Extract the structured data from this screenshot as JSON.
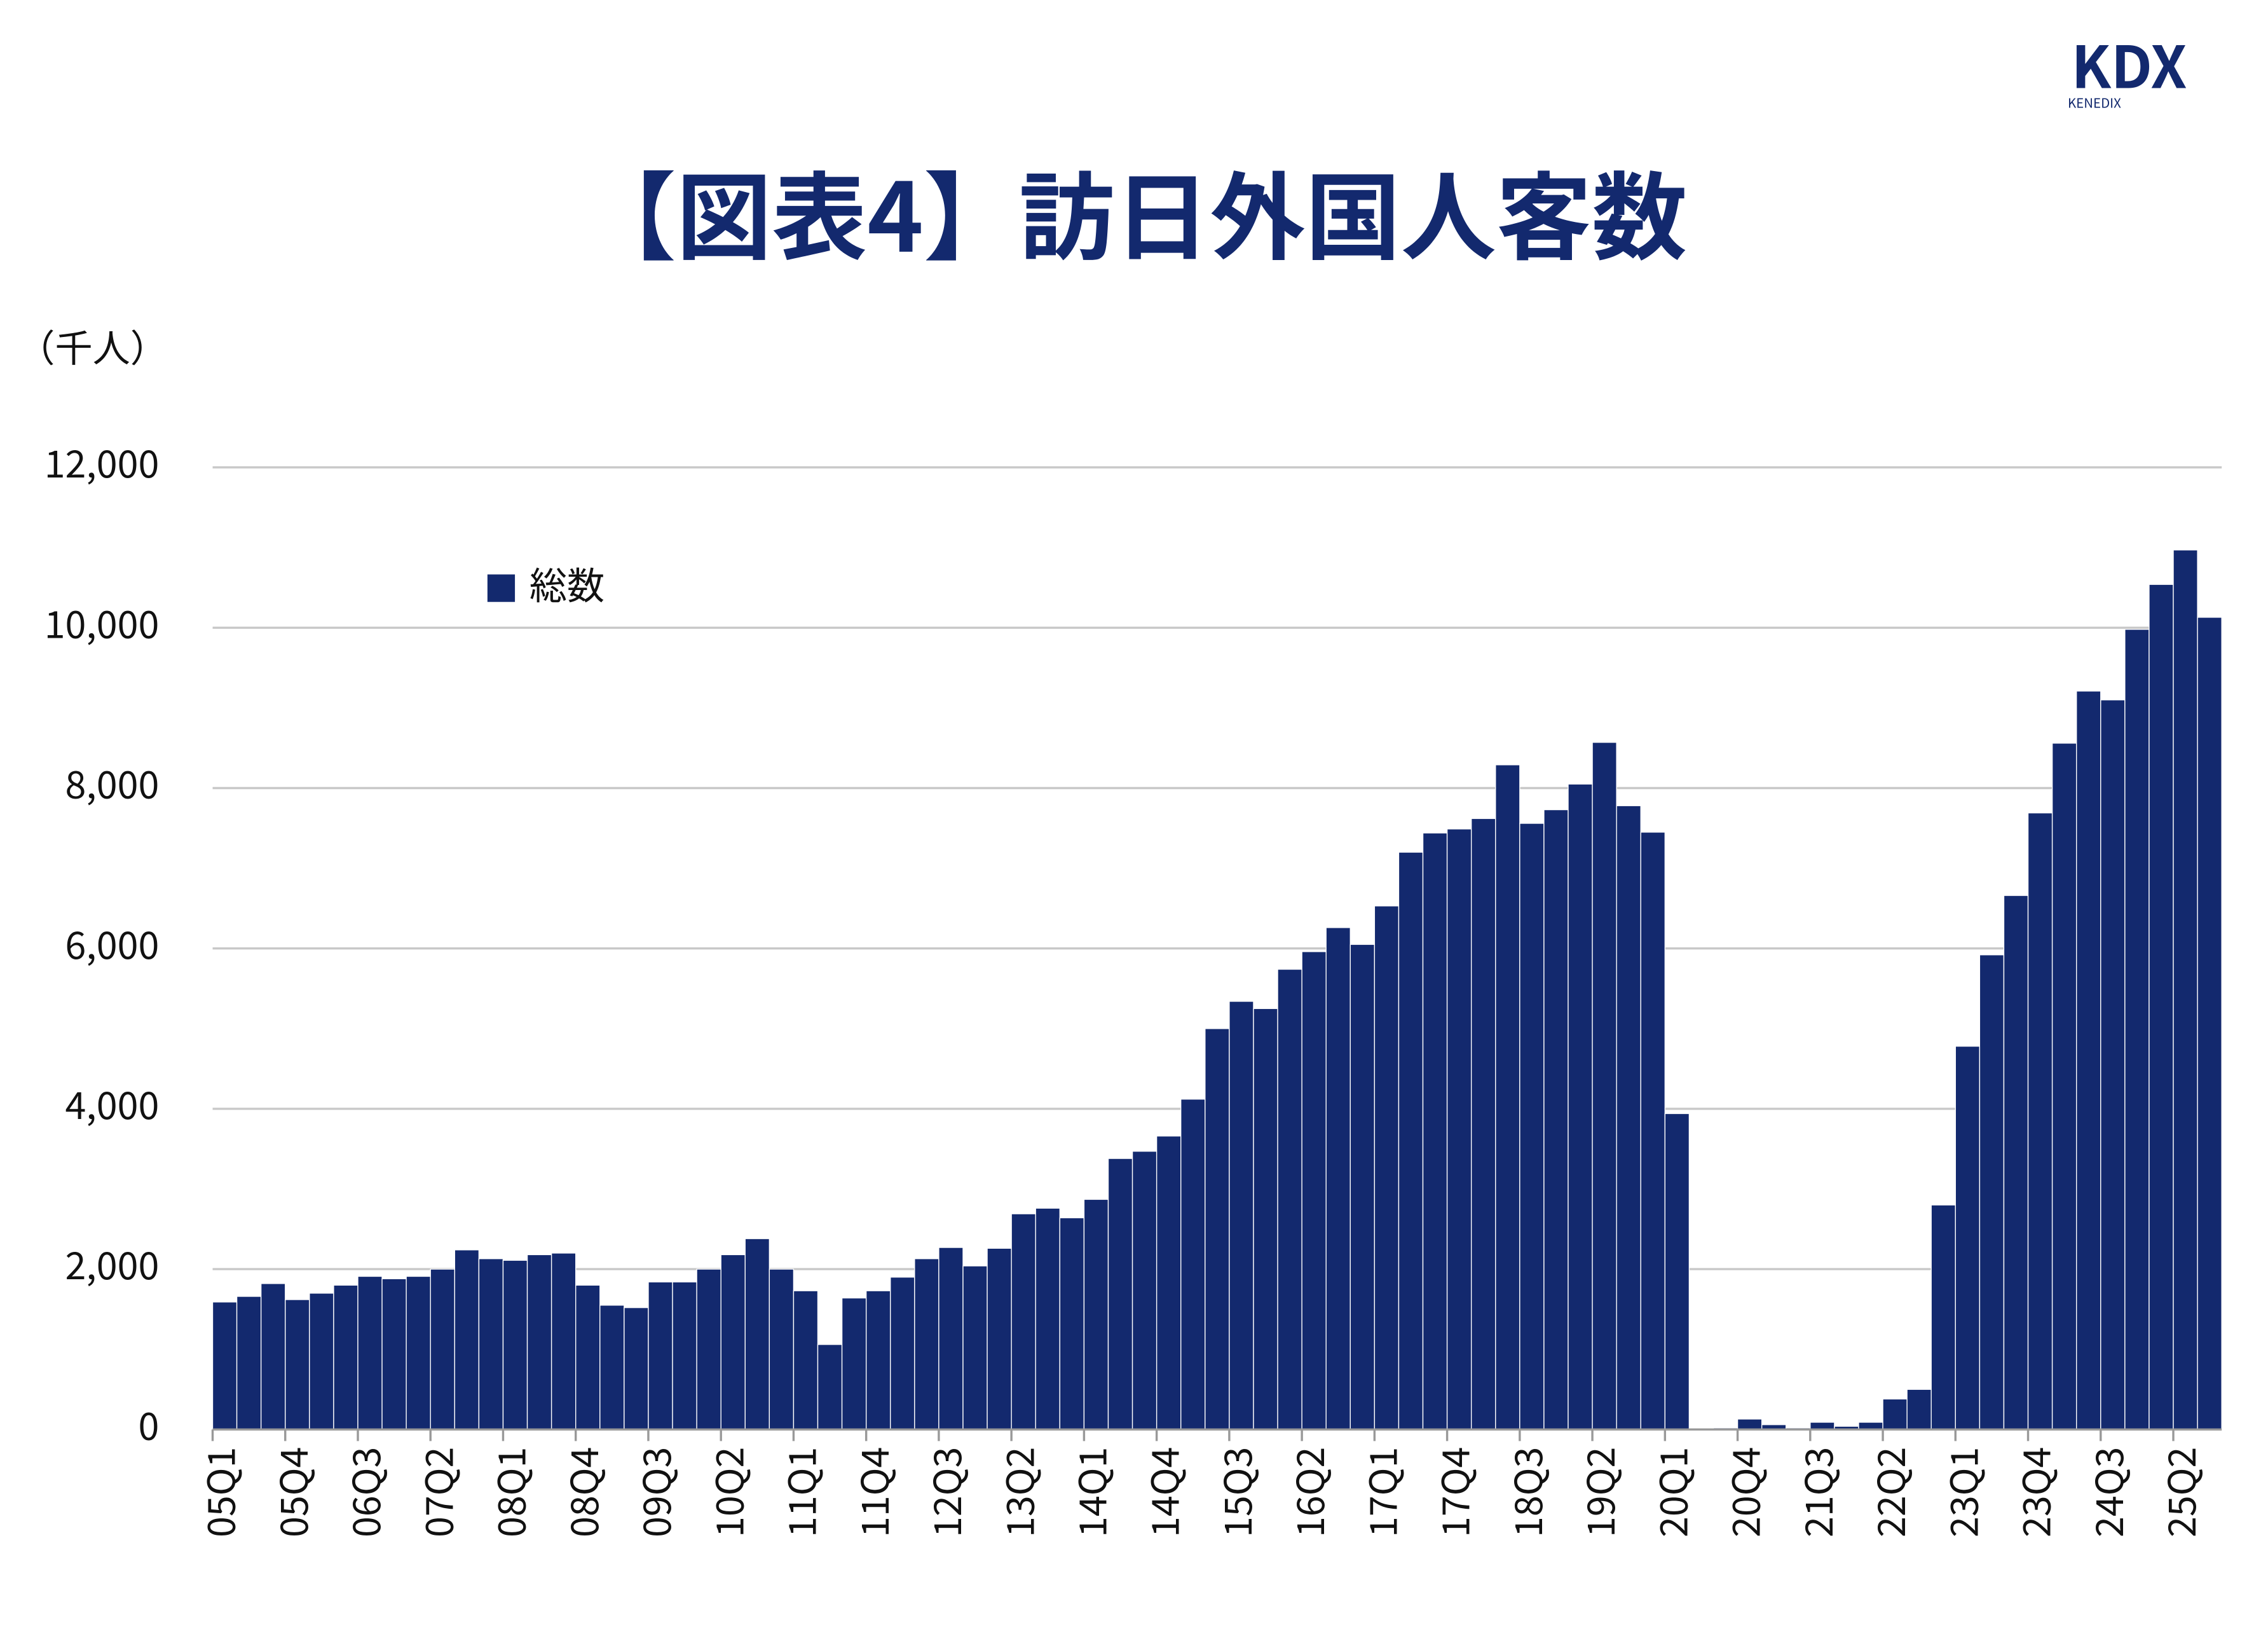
{
  "logo": {
    "mark": "KDX",
    "sub": "KENEDIX"
  },
  "chart_data": {
    "type": "bar",
    "title": "【図表4】訪日外国人客数",
    "y_label": "（千人）",
    "categories": [
      "05Q1",
      null,
      null,
      "05Q4",
      null,
      null,
      "06Q3",
      null,
      null,
      "07Q2",
      null,
      null,
      "08Q1",
      null,
      null,
      "08Q4",
      null,
      null,
      "09Q3",
      null,
      null,
      "10Q2",
      null,
      null,
      "11Q1",
      null,
      null,
      "11Q4",
      null,
      null,
      "12Q3",
      null,
      null,
      "13Q2",
      null,
      null,
      "14Q1",
      null,
      null,
      "14Q4",
      null,
      null,
      "15Q3",
      null,
      null,
      "16Q2",
      null,
      null,
      "17Q1",
      null,
      null,
      "17Q4",
      null,
      null,
      "18Q3",
      null,
      null,
      "19Q2",
      null,
      null,
      "20Q1",
      null,
      null,
      "20Q4",
      null,
      null,
      "21Q3",
      null,
      null,
      "22Q2",
      null,
      null,
      "23Q1",
      null,
      null,
      "23Q4",
      null,
      null,
      "24Q3",
      null,
      null,
      "25Q2",
      null
    ],
    "series": [
      {
        "name": "総数",
        "color": "#13296e",
        "values": [
          1590,
          1660,
          1820,
          1620,
          1700,
          1800,
          1910,
          1880,
          1910,
          2000,
          2240,
          2130,
          2110,
          2180,
          2200,
          1800,
          1550,
          1520,
          1840,
          1840,
          2000,
          2180,
          2380,
          2000,
          1730,
          1060,
          1640,
          1730,
          1900,
          2130,
          2270,
          2040,
          2260,
          2690,
          2760,
          2640,
          2870,
          3380,
          3470,
          3660,
          4120,
          5000,
          5340,
          5250,
          5740,
          5960,
          6260,
          6050,
          6530,
          7200,
          7440,
          7490,
          7620,
          8290,
          7560,
          7730,
          8050,
          8570,
          7780,
          7450,
          3940,
          4,
          20,
          130,
          60,
          20,
          90,
          40,
          90,
          380,
          500,
          2800,
          4780,
          5920,
          6660,
          7690,
          8560,
          9210,
          9100,
          9980,
          10540,
          10970,
          10130
        ]
      }
    ],
    "ylim": [
      0,
      12000
    ],
    "yticks": [
      0,
      {
        "value": 2000,
        "label": "2,000"
      },
      {
        "value": 4000,
        "label": "4,000"
      },
      {
        "value": 6000,
        "label": "6,000"
      },
      {
        "value": 8000,
        "label": "8,000"
      },
      {
        "value": 10000,
        "label": "10,000"
      },
      {
        "value": 12000,
        "label": "12,000"
      }
    ],
    "grid": true,
    "legend": "top-left"
  }
}
